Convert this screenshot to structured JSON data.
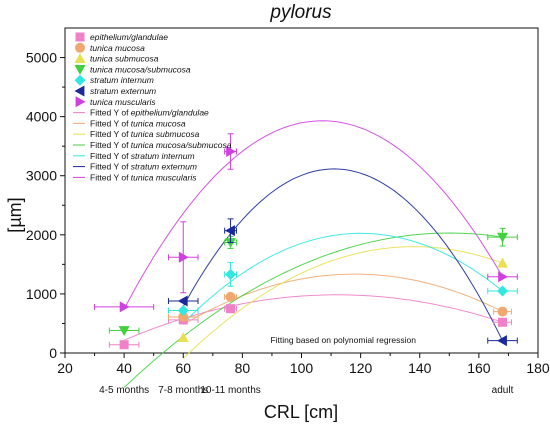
{
  "chart_data": {
    "type": "scatter",
    "title": "pylorus",
    "xlabel": "CRL [cm]",
    "ylabel": "[µm]",
    "xlim": [
      20,
      180
    ],
    "ylim": [
      0,
      5500
    ],
    "xticks": [
      20,
      40,
      60,
      80,
      100,
      120,
      140,
      160,
      180
    ],
    "yticks": [
      0,
      1000,
      2000,
      3000,
      4000,
      5000
    ],
    "age_labels": [
      {
        "x": 40,
        "label": "4-5 months"
      },
      {
        "x": 60,
        "label": "7-8 months"
      },
      {
        "x": 76,
        "label": "10-11 months"
      },
      {
        "x": 168,
        "label": "adult"
      }
    ],
    "note": "Fitting based on polynomial regression",
    "legend_position": "top-left",
    "series": [
      {
        "name": "epithelium/glandulae",
        "color": "#f080c8",
        "marker": "square",
        "x": [
          40,
          60,
          76,
          168
        ],
        "y": [
          140,
          560,
          750,
          520
        ],
        "xerr": [
          5,
          5,
          2,
          3
        ],
        "yerr": [
          0,
          0,
          0,
          0
        ],
        "fit_peak": {
          "x": 112,
          "y": 985
        }
      },
      {
        "name": "tunica mucosa",
        "color": "#f0a870",
        "marker": "circle",
        "x": [
          60,
          76,
          168
        ],
        "y": [
          610,
          950,
          700
        ],
        "xerr": [
          5,
          2,
          3
        ],
        "yerr": [
          0,
          0,
          0
        ],
        "fit_peak": {
          "x": 118,
          "y": 1335
        }
      },
      {
        "name": "tunica submucosa",
        "color": "#e8e050",
        "marker": "triangle-up",
        "x": [
          60,
          168
        ],
        "y": [
          260,
          1520
        ],
        "xerr": [
          0,
          0
        ],
        "yerr": [
          0,
          0
        ],
        "fit_peak": {
          "x": 138,
          "y": 1800
        }
      },
      {
        "name": "tunica mucosa/submucosa",
        "color": "#40d040",
        "marker": "triangle-down",
        "x": [
          40,
          76,
          168
        ],
        "y": [
          380,
          1870,
          1960
        ],
        "xerr": [
          5,
          2,
          5
        ],
        "yerr": [
          0,
          100,
          150
        ],
        "fit_peak": {
          "x": 150,
          "y": 2030
        }
      },
      {
        "name": "stratum internum",
        "color": "#30e8e0",
        "marker": "diamond",
        "x": [
          60,
          76,
          168
        ],
        "y": [
          720,
          1330,
          1050
        ],
        "xerr": [
          5,
          2,
          5
        ],
        "yerr": [
          0,
          200,
          0
        ],
        "fit_peak": {
          "x": 120,
          "y": 2025
        }
      },
      {
        "name": "stratum externum",
        "color": "#1a2a9a",
        "marker": "triangle-left",
        "x": [
          60,
          76,
          168
        ],
        "y": [
          880,
          2070,
          210
        ],
        "xerr": [
          5,
          2,
          5
        ],
        "yerr": [
          0,
          200,
          0
        ],
        "fit_peak": {
          "x": 111,
          "y": 3115
        }
      },
      {
        "name": "tunica muscularis",
        "color": "#d040e0",
        "marker": "triangle-right",
        "x": [
          40,
          60,
          76,
          168
        ],
        "y": [
          780,
          1620,
          3410,
          1290
        ],
        "xerr": [
          10,
          5,
          2,
          5
        ],
        "yerr": [
          0,
          600,
          300,
          0
        ],
        "fit_peak": {
          "x": 107,
          "y": 3930
        }
      }
    ],
    "fit_legend_prefix": "Fitted Y of"
  }
}
